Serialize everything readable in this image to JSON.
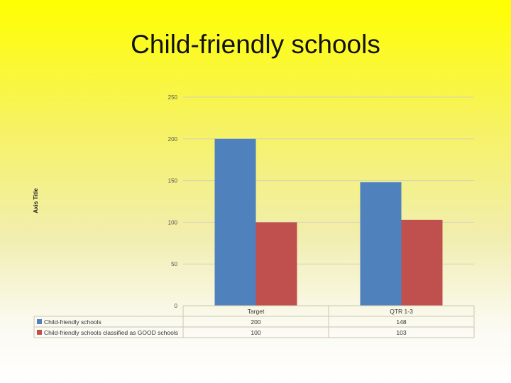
{
  "slide": {
    "title": "Child-friendly schools"
  },
  "chart_data": {
    "type": "bar",
    "categories": [
      "Target",
      "QTR 1-3"
    ],
    "series": [
      {
        "name": "Child-friendly schools",
        "values": [
          200,
          148
        ],
        "color": "#4f81bd"
      },
      {
        "name": "Child-friendly schools classified as GOOD schools",
        "values": [
          100,
          103
        ],
        "color": "#c0504d"
      }
    ],
    "ylabel": "Axis Title",
    "ylim": [
      0,
      250
    ],
    "yticks": [
      0,
      50,
      100,
      150,
      200,
      250
    ],
    "grid": true,
    "data_table": true,
    "legend": "data-table-keys"
  }
}
